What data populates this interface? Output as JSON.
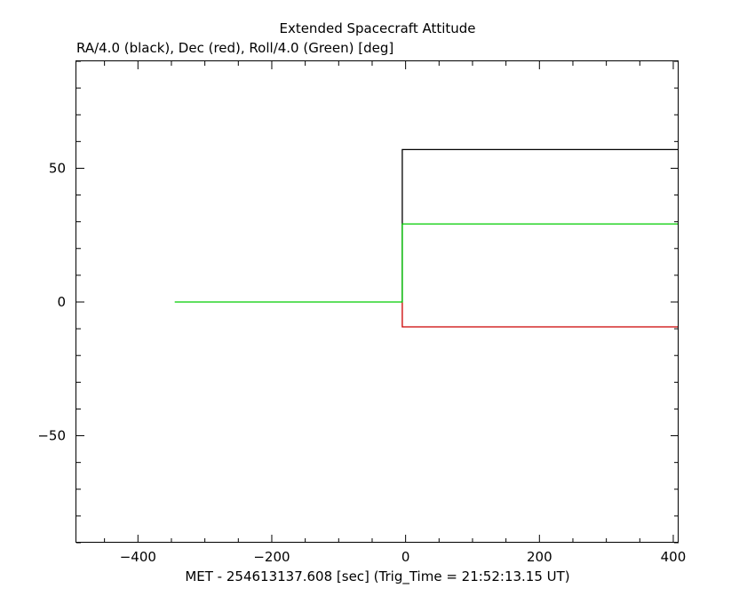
{
  "chart_data": {
    "type": "line",
    "title": "Extended Spacecraft Attitude",
    "subtitle": "RA/4.0 (black), Dec (red), Roll/4.0 (Green) [deg]",
    "xlabel": "MET - 254613137.608 [sec] (Trig_Time = 21:52:13.15 UT)",
    "ylabel": "",
    "xlim": [
      -492,
      408
    ],
    "ylim": [
      -90,
      90
    ],
    "xticks": [
      -400,
      -200,
      0,
      200,
      400
    ],
    "xtick_labels": [
      "−400",
      "−200",
      "0",
      "200",
      "400"
    ],
    "yticks": [
      -50,
      0,
      50
    ],
    "ytick_labels": [
      "−50",
      "0",
      "50"
    ],
    "grid": false,
    "series": [
      {
        "color": "#000000",
        "x": [
          -5,
          -5,
          408
        ],
        "y": [
          0,
          57,
          57
        ]
      },
      {
        "color": "#cc0000",
        "x": [
          -5,
          -5,
          408
        ],
        "y": [
          0,
          -9.3,
          -9.3
        ]
      },
      {
        "color": "#00cc00",
        "x": [
          -345,
          -5,
          -5,
          408
        ],
        "y": [
          0,
          0,
          29.2,
          29.2
        ]
      }
    ]
  }
}
